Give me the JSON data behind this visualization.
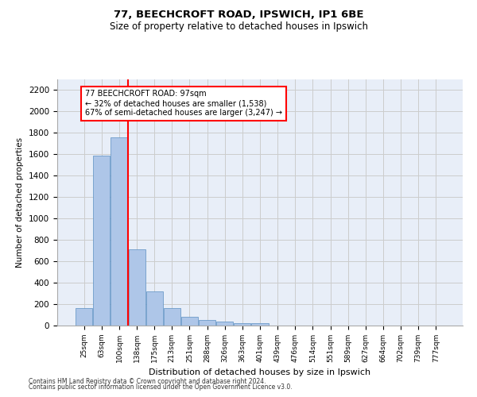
{
  "title1": "77, BEECHCROFT ROAD, IPSWICH, IP1 6BE",
  "title2": "Size of property relative to detached houses in Ipswich",
  "xlabel": "Distribution of detached houses by size in Ipswich",
  "ylabel": "Number of detached properties",
  "categories": [
    "25sqm",
    "63sqm",
    "100sqm",
    "138sqm",
    "175sqm",
    "213sqm",
    "251sqm",
    "288sqm",
    "326sqm",
    "363sqm",
    "401sqm",
    "439sqm",
    "476sqm",
    "514sqm",
    "551sqm",
    "589sqm",
    "627sqm",
    "664sqm",
    "702sqm",
    "739sqm",
    "777sqm"
  ],
  "values": [
    160,
    1590,
    1760,
    710,
    320,
    160,
    85,
    55,
    35,
    25,
    25,
    0,
    0,
    0,
    0,
    0,
    0,
    0,
    0,
    0,
    0
  ],
  "bar_color": "#aec6e8",
  "bar_edge_color": "#5a8fc2",
  "bar_width": 0.95,
  "vline_x": 2.5,
  "vline_color": "red",
  "annotation_text": "77 BEECHCROFT ROAD: 97sqm\n← 32% of detached houses are smaller (1,538)\n67% of semi-detached houses are larger (3,247) →",
  "annotation_box_color": "white",
  "annotation_box_edge": "red",
  "ylim": [
    0,
    2300
  ],
  "yticks": [
    0,
    200,
    400,
    600,
    800,
    1000,
    1200,
    1400,
    1600,
    1800,
    2000,
    2200
  ],
  "grid_color": "#cccccc",
  "bg_color": "#e8eef8",
  "footer1": "Contains HM Land Registry data © Crown copyright and database right 2024.",
  "footer2": "Contains public sector information licensed under the Open Government Licence v3.0."
}
